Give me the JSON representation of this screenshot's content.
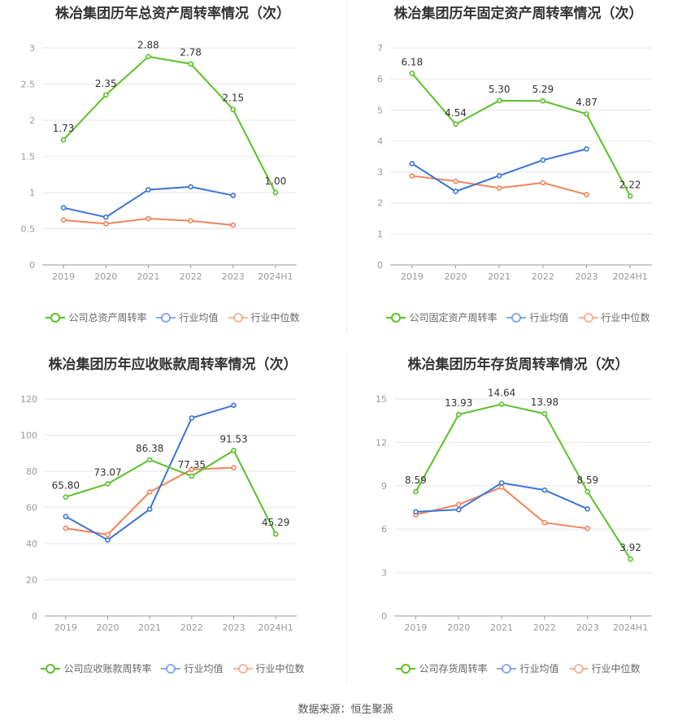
{
  "source": "数据来源：恒生聚源",
  "legend_common": {
    "avg": "行业均值",
    "median": "行业中位数"
  },
  "colors": {
    "company": "#5ac127",
    "avg": "#3b74d8",
    "median": "#f0845a",
    "grid": "#e6e6e6",
    "axis": "#999999"
  },
  "chart_data": [
    {
      "type": "line",
      "title": "株冶集团历年总资产周转率情况（次）",
      "categories": [
        "2019",
        "2020",
        "2021",
        "2022",
        "2023",
        "2024H1"
      ],
      "ylim": [
        0,
        3
      ],
      "yticks": [
        0,
        0.5,
        1,
        1.5,
        2,
        2.5,
        3
      ],
      "ytick_labels": [
        "0",
        "0.5",
        "1",
        "1.5",
        "2",
        "2.5",
        "3"
      ],
      "series": [
        {
          "name": "公司总资产周转率",
          "role": "company",
          "values": [
            1.73,
            2.35,
            2.88,
            2.78,
            2.15,
            1.0
          ],
          "labels": [
            "1.73",
            "2.35",
            "2.88",
            "2.78",
            "2.15",
            "1.00"
          ]
        },
        {
          "name": "行业均值",
          "role": "avg",
          "values": [
            0.79,
            0.66,
            1.04,
            1.08,
            0.96,
            null
          ]
        },
        {
          "name": "行业中位数",
          "role": "median",
          "values": [
            0.62,
            0.57,
            0.64,
            0.61,
            0.55,
            null
          ]
        }
      ],
      "legend_position": "bottom",
      "grid": true
    },
    {
      "type": "line",
      "title": "株冶集团历年固定资产周转率情况（次）",
      "categories": [
        "2019",
        "2020",
        "2021",
        "2022",
        "2023",
        "2024H1"
      ],
      "ylim": [
        0,
        7
      ],
      "yticks": [
        0,
        1,
        2,
        3,
        4,
        5,
        6,
        7
      ],
      "ytick_labels": [
        "0",
        "1",
        "2",
        "3",
        "4",
        "5",
        "6",
        "7"
      ],
      "series": [
        {
          "name": "公司固定资产周转率",
          "role": "company",
          "values": [
            6.18,
            4.54,
            5.3,
            5.29,
            4.87,
            2.22
          ],
          "labels": [
            "6.18",
            "4.54",
            "5.30",
            "5.29",
            "4.87",
            "2.22"
          ]
        },
        {
          "name": "行业均值",
          "role": "avg",
          "values": [
            3.27,
            2.37,
            2.88,
            3.38,
            3.74,
            null
          ]
        },
        {
          "name": "行业中位数",
          "role": "median",
          "values": [
            2.87,
            2.7,
            2.48,
            2.65,
            2.27,
            null
          ]
        }
      ],
      "legend_position": "bottom",
      "grid": true
    },
    {
      "type": "line",
      "title": "株冶集团历年应收账款周转率情况（次）",
      "categories": [
        "2019",
        "2020",
        "2021",
        "2022",
        "2023",
        "2024H1"
      ],
      "ylim": [
        0,
        120
      ],
      "yticks": [
        0,
        20,
        40,
        60,
        80,
        100,
        120
      ],
      "ytick_labels": [
        "0",
        "20",
        "40",
        "60",
        "80",
        "100",
        "120"
      ],
      "series": [
        {
          "name": "公司应收账款周转率",
          "role": "company",
          "values": [
            65.8,
            73.07,
            86.38,
            77.35,
            91.53,
            45.29
          ],
          "labels": [
            "65.80",
            "73.07",
            "86.38",
            "77.35",
            "91.53",
            "45.29"
          ]
        },
        {
          "name": "行业均值",
          "role": "avg",
          "values": [
            55.0,
            42.0,
            59.0,
            109.5,
            116.5,
            null
          ]
        },
        {
          "name": "行业中位数",
          "role": "median",
          "values": [
            48.5,
            45.0,
            68.5,
            81.0,
            82.0,
            null
          ]
        }
      ],
      "legend_position": "bottom",
      "grid": true
    },
    {
      "type": "line",
      "title": "株冶集团历年存货周转率情况（次）",
      "categories": [
        "2019",
        "2020",
        "2021",
        "2022",
        "2023",
        "2024H1"
      ],
      "ylim": [
        0,
        15
      ],
      "yticks": [
        0,
        3,
        6,
        9,
        12,
        15
      ],
      "ytick_labels": [
        "0",
        "3",
        "6",
        "9",
        "12",
        "15"
      ],
      "series": [
        {
          "name": "公司存货周转率",
          "role": "company",
          "values": [
            8.59,
            13.93,
            14.64,
            13.98,
            8.59,
            3.92
          ],
          "labels": [
            "8.59",
            "13.93",
            "14.64",
            "13.98",
            "8.59",
            "3.92"
          ]
        },
        {
          "name": "行业均值",
          "role": "avg",
          "values": [
            7.2,
            7.35,
            9.2,
            8.7,
            7.4,
            null
          ]
        },
        {
          "name": "行业中位数",
          "role": "median",
          "values": [
            7.0,
            7.7,
            8.9,
            6.45,
            6.05,
            null
          ]
        }
      ],
      "legend_position": "bottom",
      "grid": true
    }
  ]
}
